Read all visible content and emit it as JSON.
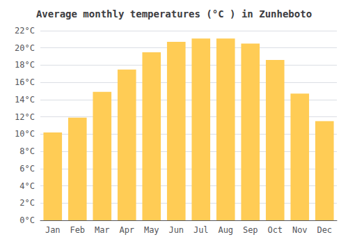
{
  "chart_data": {
    "type": "bar",
    "title": "Average monthly temperatures (°C ) in Zunheboto",
    "categories": [
      "Jan",
      "Feb",
      "Mar",
      "Apr",
      "May",
      "Jun",
      "Jul",
      "Aug",
      "Sep",
      "Oct",
      "Nov",
      "Dec"
    ],
    "values": [
      10.2,
      11.9,
      14.9,
      17.5,
      19.5,
      20.7,
      21.1,
      21.1,
      20.5,
      18.6,
      14.7,
      11.5
    ],
    "color": "#FFCC55",
    "ylim": [
      0,
      22
    ],
    "yticks": [
      {
        "value": 0,
        "label": "0°C"
      },
      {
        "value": 2,
        "label": "2°C"
      },
      {
        "value": 4,
        "label": "4°C"
      },
      {
        "value": 6,
        "label": "6°C"
      },
      {
        "value": 8,
        "label": "8°C"
      },
      {
        "value": 10,
        "label": "10°C"
      },
      {
        "value": 12,
        "label": "12°C"
      },
      {
        "value": 14,
        "label": "14°C"
      },
      {
        "value": 16,
        "label": "16°C"
      },
      {
        "value": 18,
        "label": "18°C"
      },
      {
        "value": 20,
        "label": "20°C"
      },
      {
        "value": 22,
        "label": "22°C"
      }
    ],
    "grid": true
  }
}
